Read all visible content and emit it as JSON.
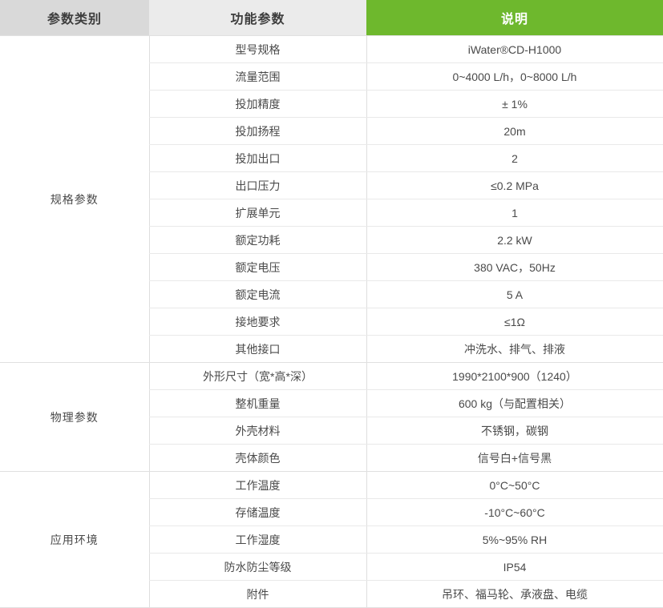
{
  "header": {
    "col1": "参数类别",
    "col2": "功能参数",
    "col3": "说明"
  },
  "colors": {
    "accent_green": "#6eb82d",
    "header_gray_dark": "#d9d9d9",
    "header_gray_light": "#ebebeb",
    "header_text": "#3d3d3d",
    "body_text": "#4a4a4a",
    "row_border": "#e9e9e9",
    "section_border": "#e0e0e0"
  },
  "sections": [
    {
      "category": "规格参数",
      "rows": [
        {
          "param": "型号规格",
          "value": "iWater®CD-H1000"
        },
        {
          "param": "流量范围",
          "value": "0~4000 L/h，0~8000 L/h"
        },
        {
          "param": "投加精度",
          "value": "± 1%"
        },
        {
          "param": "投加扬程",
          "value": "20m"
        },
        {
          "param": "投加出口",
          "value": "2"
        },
        {
          "param": "出口压力",
          "value": "≤0.2 MPa"
        },
        {
          "param": "扩展单元",
          "value": "1"
        },
        {
          "param": "额定功耗",
          "value": "2.2 kW"
        },
        {
          "param": "额定电压",
          "value": "380 VAC，50Hz"
        },
        {
          "param": "额定电流",
          "value": "5 A"
        },
        {
          "param": "接地要求",
          "value": "≤1Ω"
        },
        {
          "param": "其他接口",
          "value": "冲洗水、排气、排液"
        }
      ]
    },
    {
      "category": "物理参数",
      "rows": [
        {
          "param": "外形尺寸（宽*高*深）",
          "value": "1990*2100*900（1240）"
        },
        {
          "param": "整机重量",
          "value": "600 kg（与配置相关）"
        },
        {
          "param": "外壳材料",
          "value": "不锈钢，碳钢"
        },
        {
          "param": "壳体颜色",
          "value": "信号白+信号黑"
        }
      ]
    },
    {
      "category": "应用环境",
      "rows": [
        {
          "param": "工作温度",
          "value": "0°C~50°C"
        },
        {
          "param": "存储温度",
          "value": "-10°C~60°C"
        },
        {
          "param": "工作湿度",
          "value": "5%~95% RH"
        },
        {
          "param": "防水防尘等级",
          "value": "IP54"
        },
        {
          "param": "附件",
          "value": "吊环、福马轮、承液盘、电缆"
        }
      ]
    }
  ]
}
